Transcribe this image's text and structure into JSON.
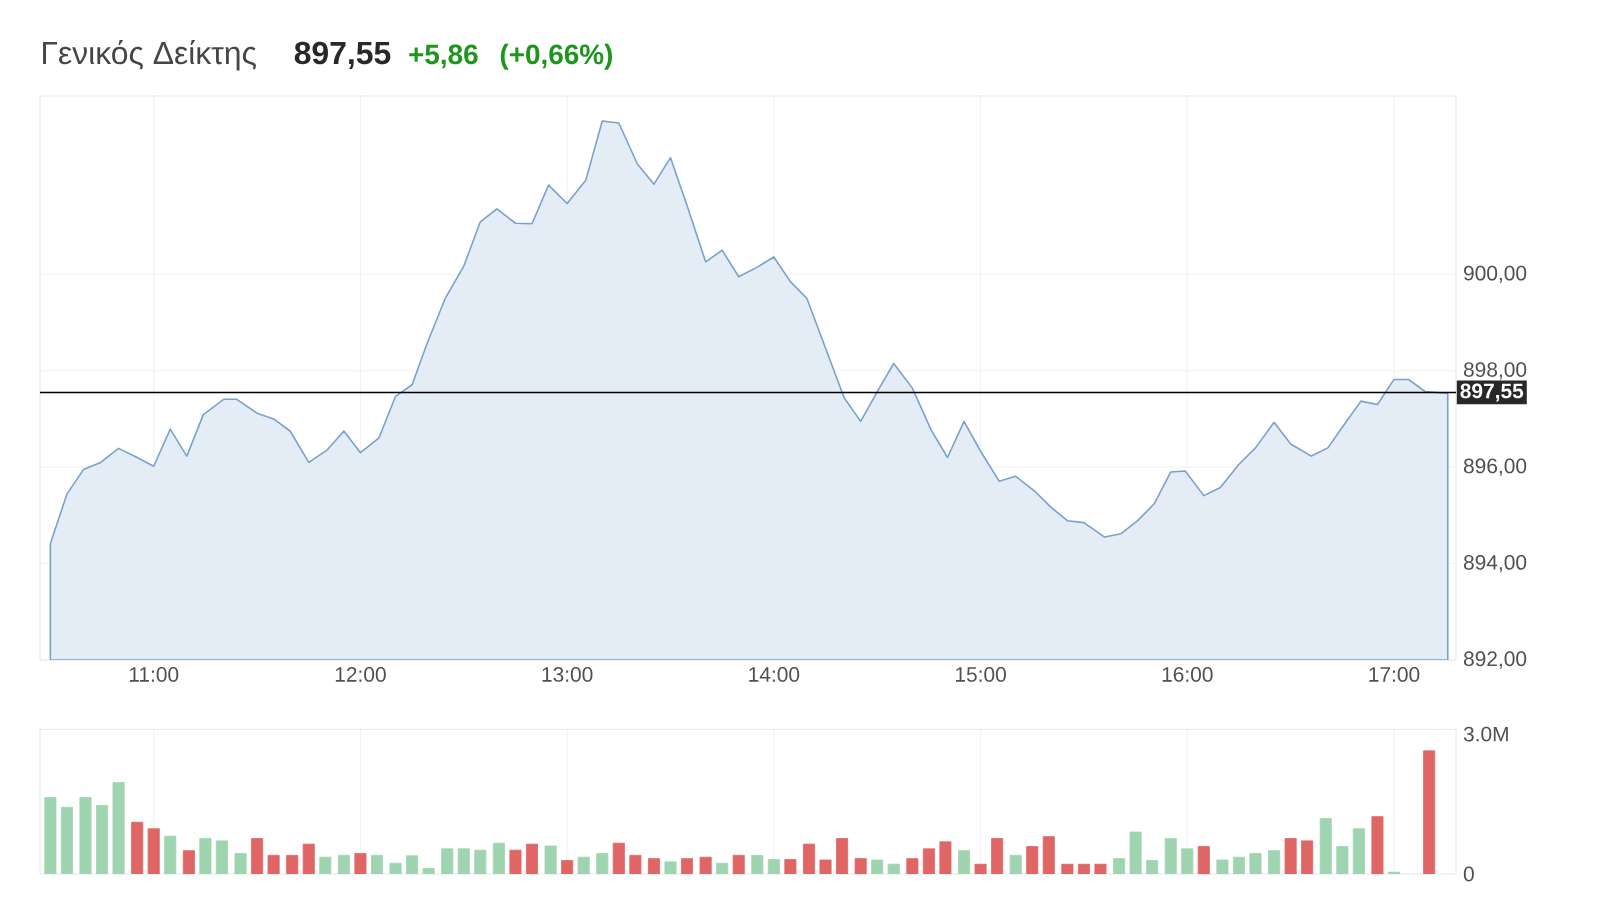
{
  "chart_data": [
    {
      "type": "area",
      "title": "Γενικός Δείκτης",
      "annotations": [
        "897,55",
        "+5,86",
        "(+0,66%)"
      ],
      "x": [
        10.5,
        10.58,
        10.66,
        10.74,
        10.83,
        10.92,
        11.0,
        11.08,
        11.16,
        11.24,
        11.34,
        11.4,
        11.5,
        11.58,
        11.66,
        11.75,
        11.84,
        11.92,
        12.0,
        12.09,
        12.17,
        12.25,
        12.32,
        12.41,
        12.5,
        12.58,
        12.66,
        12.75,
        12.83,
        12.91,
        13.0,
        13.09,
        13.17,
        13.25,
        13.34,
        13.42,
        13.5,
        13.58,
        13.67,
        13.75,
        13.83,
        13.92,
        14.0,
        14.08,
        14.16,
        14.34,
        14.42,
        14.51,
        14.58,
        14.67,
        14.76,
        14.84,
        14.92,
        15.0,
        15.09,
        15.17,
        15.26,
        15.34,
        15.42,
        15.5,
        15.6,
        15.68,
        15.76,
        15.84,
        15.92,
        15.99,
        16.08,
        16.16,
        16.25,
        16.33,
        16.42,
        16.5,
        16.6,
        16.68,
        16.76,
        16.84,
        16.92,
        17.0,
        17.07,
        17.15,
        17.26
      ],
      "series": [
        {
          "color": "#e4edf5",
          "values": [
            894.41,
            895.44,
            895.95,
            896.09,
            896.39,
            896.2,
            896.02,
            896.79,
            896.23,
            897.09,
            897.41,
            897.41,
            897.12,
            897.0,
            896.75,
            896.1,
            896.36,
            896.75,
            896.3,
            896.61,
            897.47,
            897.71,
            898.54,
            899.5,
            900.17,
            901.09,
            901.36,
            901.06,
            901.05,
            901.85,
            901.47,
            901.95,
            903.18,
            903.14,
            902.29,
            901.87,
            902.42,
            901.43,
            900.26,
            900.5,
            899.95,
            900.15,
            900.36,
            899.85,
            899.5,
            897.44,
            896.95,
            897.64,
            898.15,
            897.64,
            896.78,
            896.2,
            896.95,
            896.33,
            895.71,
            895.81,
            895.51,
            895.17,
            894.89,
            894.85,
            894.55,
            894.62,
            894.89,
            895.24,
            895.9,
            895.92,
            895.41,
            895.58,
            896.06,
            896.4,
            896.93,
            896.48,
            896.23,
            896.4,
            896.89,
            897.37,
            897.3,
            897.82,
            897.82,
            897.57,
            897.53
          ]
        }
      ],
      "xlim": [
        10.45,
        17.3
      ],
      "xticks": [
        {
          "value": 11,
          "label": "11:00"
        },
        {
          "value": 12,
          "label": "12:00"
        },
        {
          "value": 13,
          "label": "13:00"
        },
        {
          "value": 14,
          "label": "14:00"
        },
        {
          "value": 15,
          "label": "15:00"
        },
        {
          "value": 16,
          "label": "16:00"
        },
        {
          "value": 17,
          "label": "17:00"
        }
      ],
      "ylim": [
        892,
        903.7
      ],
      "yticks": [
        {
          "value": 892,
          "label": "892,00"
        },
        {
          "value": 894,
          "label": "894,00"
        },
        {
          "value": 896,
          "label": "896,00"
        },
        {
          "value": 898,
          "label": "898,00"
        },
        {
          "value": 900,
          "label": "900,00"
        }
      ],
      "ref_lines": [
        {
          "axis": "y",
          "value": 897.55,
          "label": "897,55",
          "color": "#000000"
        }
      ],
      "grid": true
    },
    {
      "type": "bar",
      "x": [
        10.5,
        10.58,
        10.67,
        10.75,
        10.83,
        10.92,
        11.0,
        11.08,
        11.17,
        11.25,
        11.33,
        11.42,
        11.5,
        11.58,
        11.67,
        11.75,
        11.83,
        11.92,
        12.0,
        12.08,
        12.17,
        12.25,
        12.33,
        12.42,
        12.5,
        12.58,
        12.67,
        12.75,
        12.83,
        12.92,
        13.0,
        13.08,
        13.17,
        13.25,
        13.33,
        13.42,
        13.5,
        13.58,
        13.67,
        13.75,
        13.83,
        13.92,
        14.0,
        14.08,
        14.17,
        14.25,
        14.33,
        14.42,
        14.5,
        14.58,
        14.67,
        14.75,
        14.83,
        14.92,
        15.0,
        15.08,
        15.17,
        15.25,
        15.33,
        15.42,
        15.5,
        15.58,
        15.67,
        15.75,
        15.83,
        15.92,
        16.0,
        16.08,
        16.17,
        16.25,
        16.33,
        16.42,
        16.5,
        16.58,
        16.67,
        16.75,
        16.83,
        16.92,
        17.0,
        17.08,
        17.17
      ],
      "values": [
        1.64,
        1.43,
        1.64,
        1.47,
        1.96,
        1.11,
        0.97,
        0.81,
        0.5,
        0.76,
        0.71,
        0.44,
        0.76,
        0.4,
        0.4,
        0.64,
        0.36,
        0.4,
        0.44,
        0.4,
        0.23,
        0.39,
        0.12,
        0.54,
        0.54,
        0.51,
        0.66,
        0.51,
        0.64,
        0.6,
        0.29,
        0.36,
        0.44,
        0.66,
        0.4,
        0.33,
        0.26,
        0.33,
        0.36,
        0.23,
        0.4,
        0.4,
        0.31,
        0.31,
        0.64,
        0.3,
        0.76,
        0.33,
        0.3,
        0.21,
        0.33,
        0.54,
        0.69,
        0.5,
        0.21,
        0.76,
        0.4,
        0.59,
        0.8,
        0.21,
        0.21,
        0.21,
        0.33,
        0.9,
        0.29,
        0.76,
        0.54,
        0.59,
        0.3,
        0.36,
        0.44,
        0.5,
        0.76,
        0.71,
        1.19,
        0.59,
        0.97,
        1.23,
        0.04,
        null,
        2.64
      ],
      "colors": [
        "#9fd4b0",
        "#9fd4b0",
        "#9fd4b0",
        "#9fd4b0",
        "#9fd4b0",
        "#e06666",
        "#e06666",
        "#9fd4b0",
        "#e06666",
        "#9fd4b0",
        "#9fd4b0",
        "#9fd4b0",
        "#e06666",
        "#e06666",
        "#e06666",
        "#e06666",
        "#9fd4b0",
        "#9fd4b0",
        "#e06666",
        "#9fd4b0",
        "#9fd4b0",
        "#9fd4b0",
        "#9fd4b0",
        "#9fd4b0",
        "#9fd4b0",
        "#9fd4b0",
        "#9fd4b0",
        "#e06666",
        "#e06666",
        "#9fd4b0",
        "#e06666",
        "#9fd4b0",
        "#9fd4b0",
        "#e06666",
        "#e06666",
        "#e06666",
        "#9fd4b0",
        "#e06666",
        "#e06666",
        "#9fd4b0",
        "#e06666",
        "#9fd4b0",
        "#9fd4b0",
        "#e06666",
        "#e06666",
        "#e06666",
        "#e06666",
        "#e06666",
        "#9fd4b0",
        "#9fd4b0",
        "#e06666",
        "#e06666",
        "#e06666",
        "#9fd4b0",
        "#e06666",
        "#e06666",
        "#9fd4b0",
        "#e06666",
        "#e06666",
        "#e06666",
        "#e06666",
        "#e06666",
        "#9fd4b0",
        "#9fd4b0",
        "#9fd4b0",
        "#9fd4b0",
        "#9fd4b0",
        "#e06666",
        "#9fd4b0",
        "#9fd4b0",
        "#9fd4b0",
        "#9fd4b0",
        "#e06666",
        "#e06666",
        "#9fd4b0",
        "#9fd4b0",
        "#9fd4b0",
        "#e06666",
        "#9fd4b0",
        "#9fd4b0",
        "#e06666"
      ],
      "xlim": [
        10.45,
        17.3
      ],
      "xticks": [
        11,
        12,
        13,
        14,
        15,
        16,
        17
      ],
      "ylim": [
        0,
        3.1
      ],
      "yticks": [
        {
          "value": 0,
          "label": "0"
        },
        {
          "value": 3,
          "label": "3.0M"
        }
      ],
      "tick_labels": "y",
      "grid": "x"
    }
  ]
}
